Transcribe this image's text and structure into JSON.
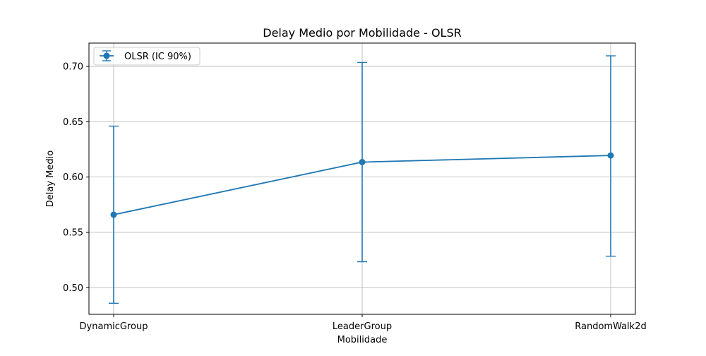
{
  "chart_data": {
    "type": "line",
    "title": "Delay Medio por Mobilidade - OLSR",
    "xlabel": "Mobilidade",
    "ylabel": "Delay Medio",
    "categories": [
      "DynamicGroup",
      "LeaderGroup",
      "RandomWalk2d"
    ],
    "series": [
      {
        "name": "OLSR (IC 90%)",
        "values": [
          0.566,
          0.6135,
          0.6195
        ],
        "error_low": [
          0.486,
          0.5235,
          0.5285
        ],
        "error_high": [
          0.646,
          0.7035,
          0.7095
        ],
        "color": "#1f77b4",
        "marker": "circle"
      }
    ],
    "ylim": [
      0.476,
      0.721
    ],
    "yticks": [
      0.5,
      0.55,
      0.6,
      0.65,
      0.7
    ],
    "ytick_labels": [
      "0.50",
      "0.55",
      "0.60",
      "0.65",
      "0.70"
    ],
    "grid": true,
    "legend_position": "top-left"
  }
}
